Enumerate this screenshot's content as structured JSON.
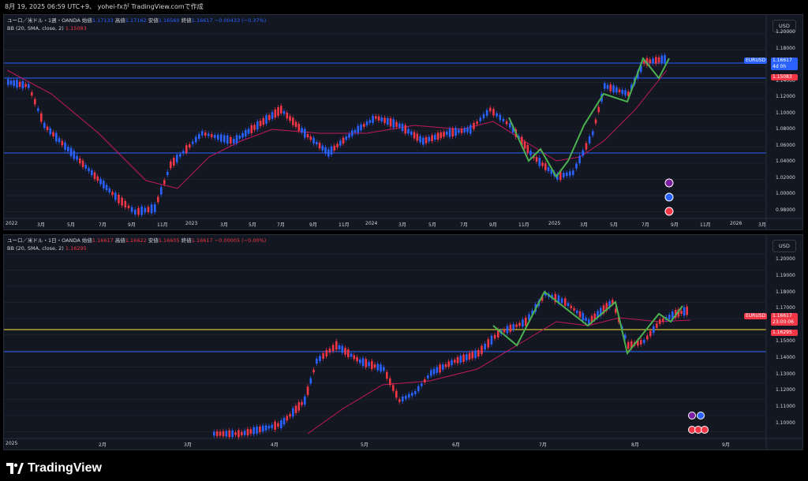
{
  "header": {
    "text": "8月 19, 2025 06:59 UTC+9、 yohei-fxが TradingView.comで作成"
  },
  "panel1": {
    "title": "ユーロ／米ドル・1週・OANDA",
    "o_label": "始値",
    "o": "1.17133",
    "h_label": "高値",
    "h": "1.17162",
    "l_label": "安値",
    "l": "1.16560",
    "c_label": "終値",
    "c": "1.16617",
    "chg": "−0.00433 (−0.37%)",
    "bb_label": "BB (20, SMA, close, 2)",
    "bb_value": "1.15083",
    "currency": "USD",
    "price_labels": [
      "1.20000",
      "1.18000",
      "1.16000",
      "1.14000",
      "1.12000",
      "1.10000",
      "1.08000",
      "1.06000",
      "1.04000",
      "1.02000",
      "1.00000",
      "0.98000"
    ],
    "time_labels": [
      "2022",
      "3月",
      "5月",
      "7月",
      "9月",
      "11月",
      "2023",
      "3月",
      "5月",
      "7月",
      "9月",
      "11月",
      "2024",
      "3月",
      "5月",
      "7月",
      "9月",
      "11月",
      "2025",
      "3月",
      "5月",
      "7月",
      "9月",
      "11月",
      "2026",
      "3月"
    ],
    "symbol_tag": "EURUSD",
    "price_tag": "1.16617",
    "countdown": "4d 0h",
    "bb_tag": "1.15083"
  },
  "panel2": {
    "title": "ユーロ／米ドル・1日・OANDA",
    "o_label": "始値",
    "o": "1.16617",
    "h_label": "高値",
    "h": "1.16622",
    "l_label": "安値",
    "l": "1.16605",
    "c_label": "終値",
    "c": "1.16617",
    "chg": "−0.00005 (−0.00%)",
    "bb_label": "BB (20, SMA, close, 2)",
    "bb_value": "1.16295",
    "currency": "USD",
    "price_labels": [
      "1.20000",
      "1.19000",
      "1.18000",
      "1.17000",
      "1.16000",
      "1.15000",
      "1.14000",
      "1.13000",
      "1.12000",
      "1.11000",
      "1.10000"
    ],
    "time_labels": [
      "2025",
      "2月",
      "3月",
      "4月",
      "5月",
      "6月",
      "7月",
      "8月",
      "9月"
    ],
    "symbol_tag": "EURUSD",
    "price_tag": "1.16617",
    "countdown": "23:00:06",
    "bb_tag": "1.16295"
  },
  "footer": {
    "brand": "TradingView"
  },
  "colors": {
    "bg": "#131722",
    "up": "#f23645",
    "down": "#2962ff",
    "bb_mid": "#c2185b",
    "swing": "#4caf50",
    "hline": "#2962ff",
    "yellow": "#ffeb3b"
  }
}
